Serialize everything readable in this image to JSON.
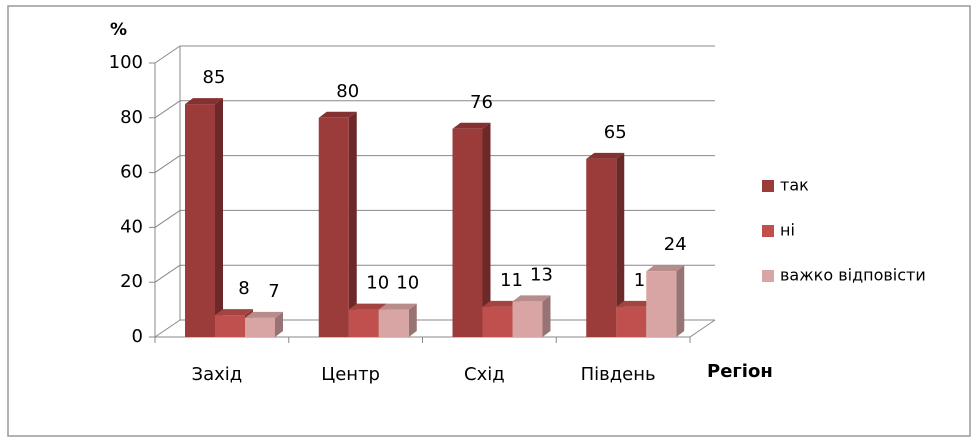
{
  "chart_data": {
    "type": "bar3d",
    "y_axis_label": "%",
    "x_axis_label": "Регіон",
    "categories": [
      "Захід",
      "Центр",
      "Схід",
      "Південь"
    ],
    "series": [
      {
        "name": "так",
        "color": "#9b3b3a",
        "values": [
          85,
          80,
          76,
          65
        ]
      },
      {
        "name": "ні",
        "color": "#c0504d",
        "values": [
          8,
          10,
          11,
          11
        ]
      },
      {
        "name": "важко відповісти",
        "color": "#d9a5a4",
        "values": [
          7,
          10,
          13,
          24
        ]
      }
    ],
    "ylim": [
      0,
      100
    ],
    "yticks": [
      0,
      20,
      40,
      60,
      80,
      100
    ],
    "grid": true,
    "legend": "right"
  }
}
